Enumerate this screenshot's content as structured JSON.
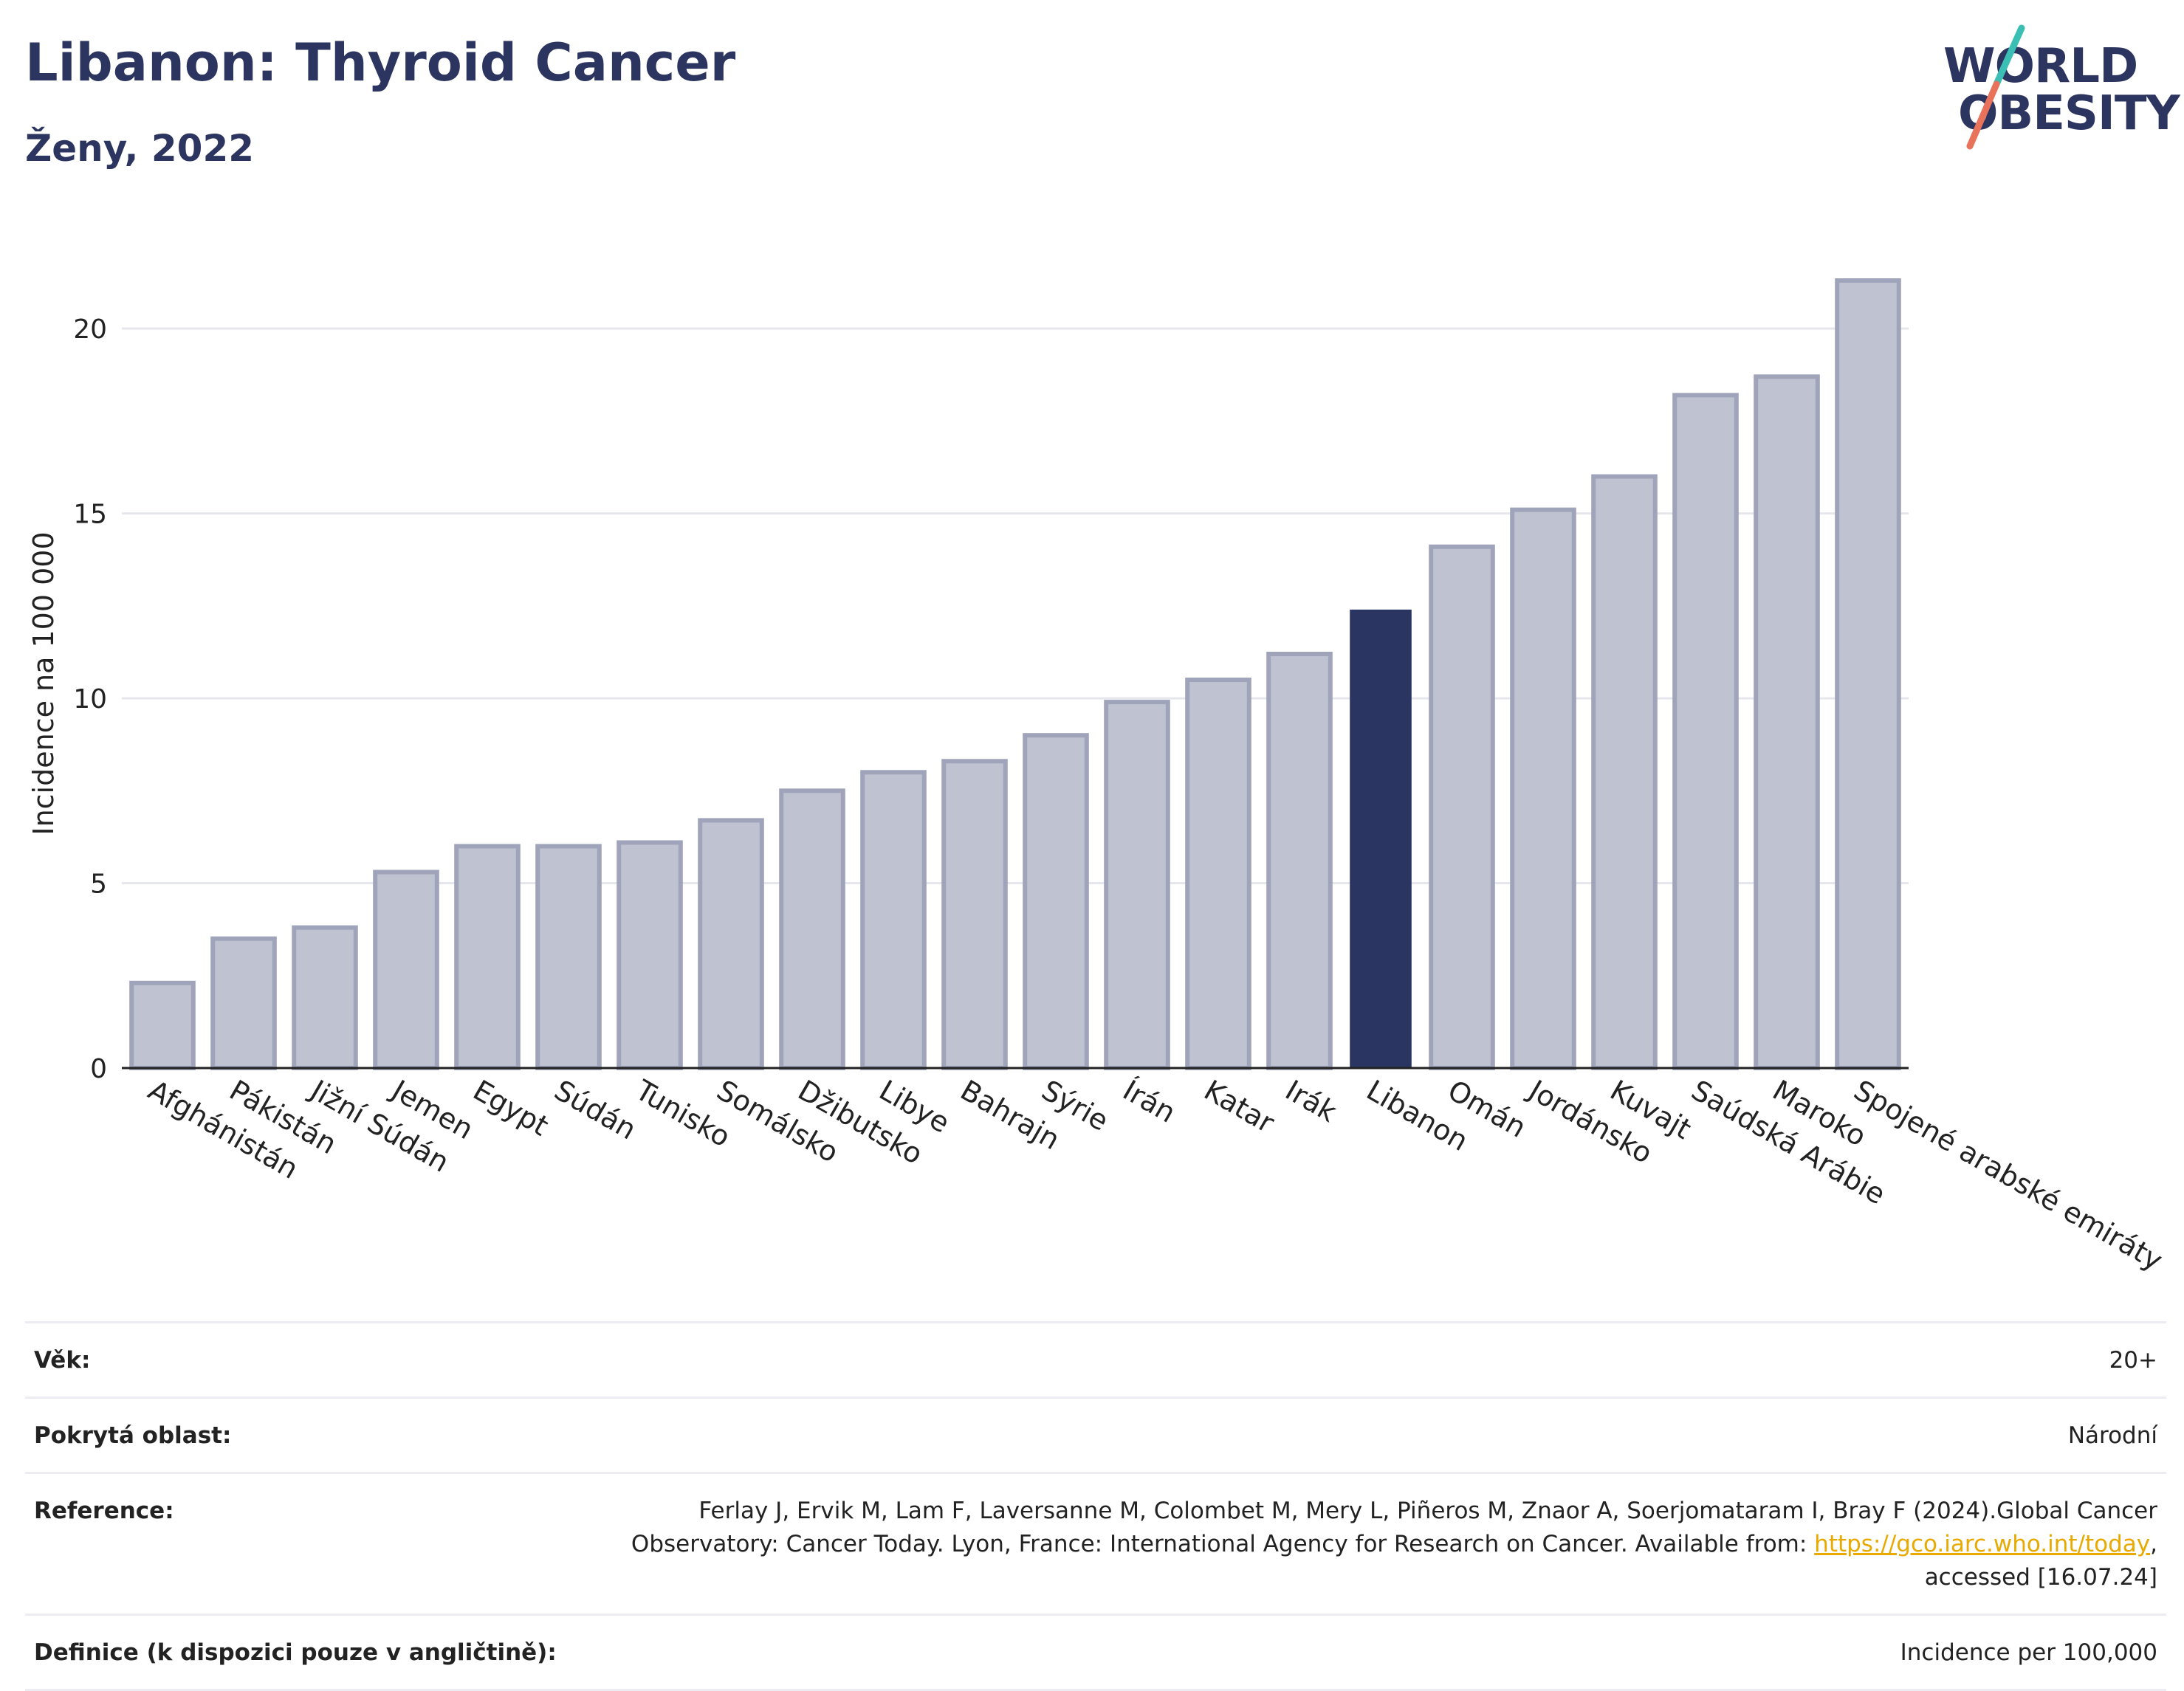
{
  "header": {
    "title": "Libanon: Thyroid Cancer",
    "subtitle": "Ženy, 2022"
  },
  "logo": {
    "line1": "WORLD",
    "line2": "OBESITY",
    "colors": {
      "text": "#2c3560",
      "slash_top": "#3bbfb5",
      "slash_bottom": "#e8735a"
    }
  },
  "colors": {
    "bar": "#bfc2d0",
    "bar_border": "#9fa4ba",
    "highlight": "#2b3561",
    "grid": "#e6e7ec",
    "axis": "#222222"
  },
  "chart_data": {
    "type": "bar",
    "ylabel": "Incidence na 100 000",
    "ylim": [
      0,
      22
    ],
    "yticks": [
      0,
      5,
      10,
      15,
      20
    ],
    "grid": true,
    "highlight": "Libanon",
    "categories": [
      "Afghánistán",
      "Pákistán",
      "Jižní Súdán",
      "Jemen",
      "Egypt",
      "Súdán",
      "Tunisko",
      "Somálsko",
      "Džibutsko",
      "Libye",
      "Bahrajn",
      "Sýrie",
      "Írán",
      "Katar",
      "Irák",
      "Libanon",
      "Omán",
      "Jordánsko",
      "Kuvajt",
      "Saúdská Arábie",
      "Maroko",
      "Spojené arabské emiráty"
    ],
    "values": [
      2.3,
      3.5,
      3.8,
      5.3,
      6.0,
      6.0,
      6.1,
      6.7,
      7.5,
      8.0,
      8.3,
      9.0,
      9.9,
      10.5,
      11.2,
      12.4,
      14.1,
      15.1,
      16.0,
      18.2,
      18.7,
      21.3
    ]
  },
  "meta": {
    "age_label": "Věk:",
    "age_value": "20+",
    "area_label": "Pokrytá oblast:",
    "area_value": "Národní",
    "reference_label": "Reference:",
    "reference_text_1": "Ferlay J, Ervik M, Lam F, Laversanne M, Colombet M, Mery L, Piñeros M, Znaor A, Soerjomataram I, Bray F (2024).Global Cancer",
    "reference_text_2": "Observatory: Cancer Today. Lyon, France: International Agency for Research on Cancer. Available from: ",
    "reference_link": "https://gco.iarc.who.int/today",
    "reference_text_3": ",",
    "reference_text_4": "accessed [16.07.24]",
    "definition_label": "Definice (k dispozici pouze v angličtině):",
    "definition_value": "Incidence per 100,000"
  }
}
